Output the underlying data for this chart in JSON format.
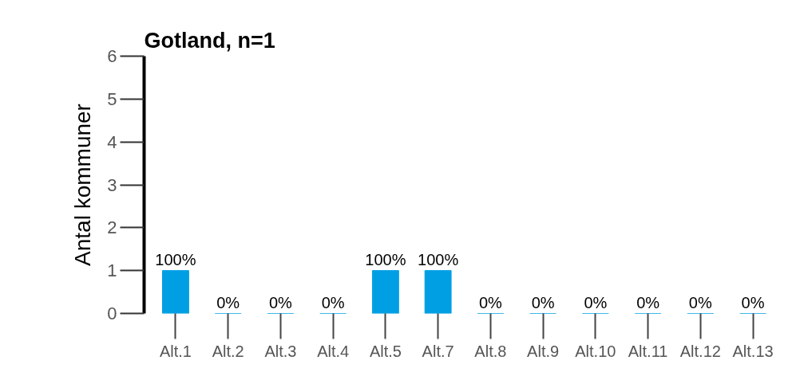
{
  "chart_data": {
    "type": "bar",
    "title": "Gotland, n=1",
    "ylabel": "Antal kommuner",
    "categories": [
      "Alt.1",
      "Alt.2",
      "Alt.3",
      "Alt.4",
      "Alt.5",
      "Alt.7",
      "Alt.8",
      "Alt.9",
      "Alt.10",
      "Alt.11",
      "Alt.12",
      "Alt.13"
    ],
    "values": [
      1,
      0,
      0,
      0,
      1,
      1,
      0,
      0,
      0,
      0,
      0,
      0
    ],
    "value_labels": [
      "100%",
      "0%",
      "0%",
      "0%",
      "100%",
      "100%",
      "0%",
      "0%",
      "0%",
      "0%",
      "0%",
      "0%"
    ],
    "color": "#009fe3",
    "ylim": [
      0,
      6
    ],
    "yticks": [
      0,
      1,
      2,
      3,
      4,
      5,
      6
    ]
  }
}
